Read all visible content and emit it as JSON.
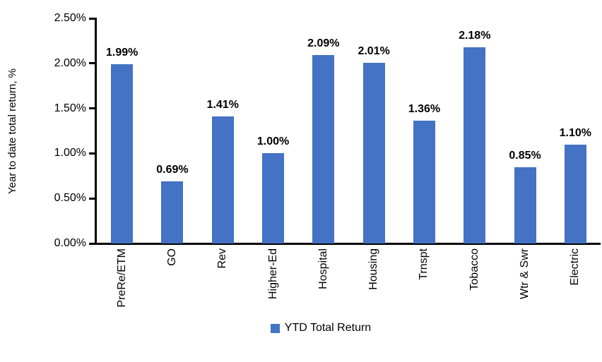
{
  "chart_data": {
    "type": "bar",
    "title": "",
    "categories": [
      "PreRe/ETM",
      "GO",
      "Rev",
      "Higher-Ed",
      "Hospital",
      "Housing",
      "Trnspt",
      "Tobacco",
      "Wtr & Swr",
      "Electric"
    ],
    "values": [
      1.99,
      0.69,
      1.41,
      1.0,
      2.09,
      2.01,
      1.36,
      2.18,
      0.85,
      1.1
    ],
    "bar_labels": [
      "1.99%",
      "0.69%",
      "1.41%",
      "1.00%",
      "2.09%",
      "2.01%",
      "1.36%",
      "2.18%",
      "0.85%",
      "1.10%"
    ],
    "xlabel": "",
    "ylabel": "Year to date total return, %",
    "ytick_labels": [
      "0.00%",
      "0.50%",
      "1.00%",
      "1.50%",
      "2.00%",
      "2.50%"
    ],
    "ytick_values": [
      0.0,
      0.5,
      1.0,
      1.5,
      2.0,
      2.5
    ],
    "ylim": [
      0,
      2.5
    ],
    "grid": false,
    "legend_position": "bottom",
    "legend": [
      {
        "label": "YTD Total Return",
        "color": "#4472C4"
      }
    ],
    "colors": {
      "bar": "#4472C4",
      "axis": "#000000",
      "text": "#000000",
      "background": "#ffffff"
    }
  }
}
